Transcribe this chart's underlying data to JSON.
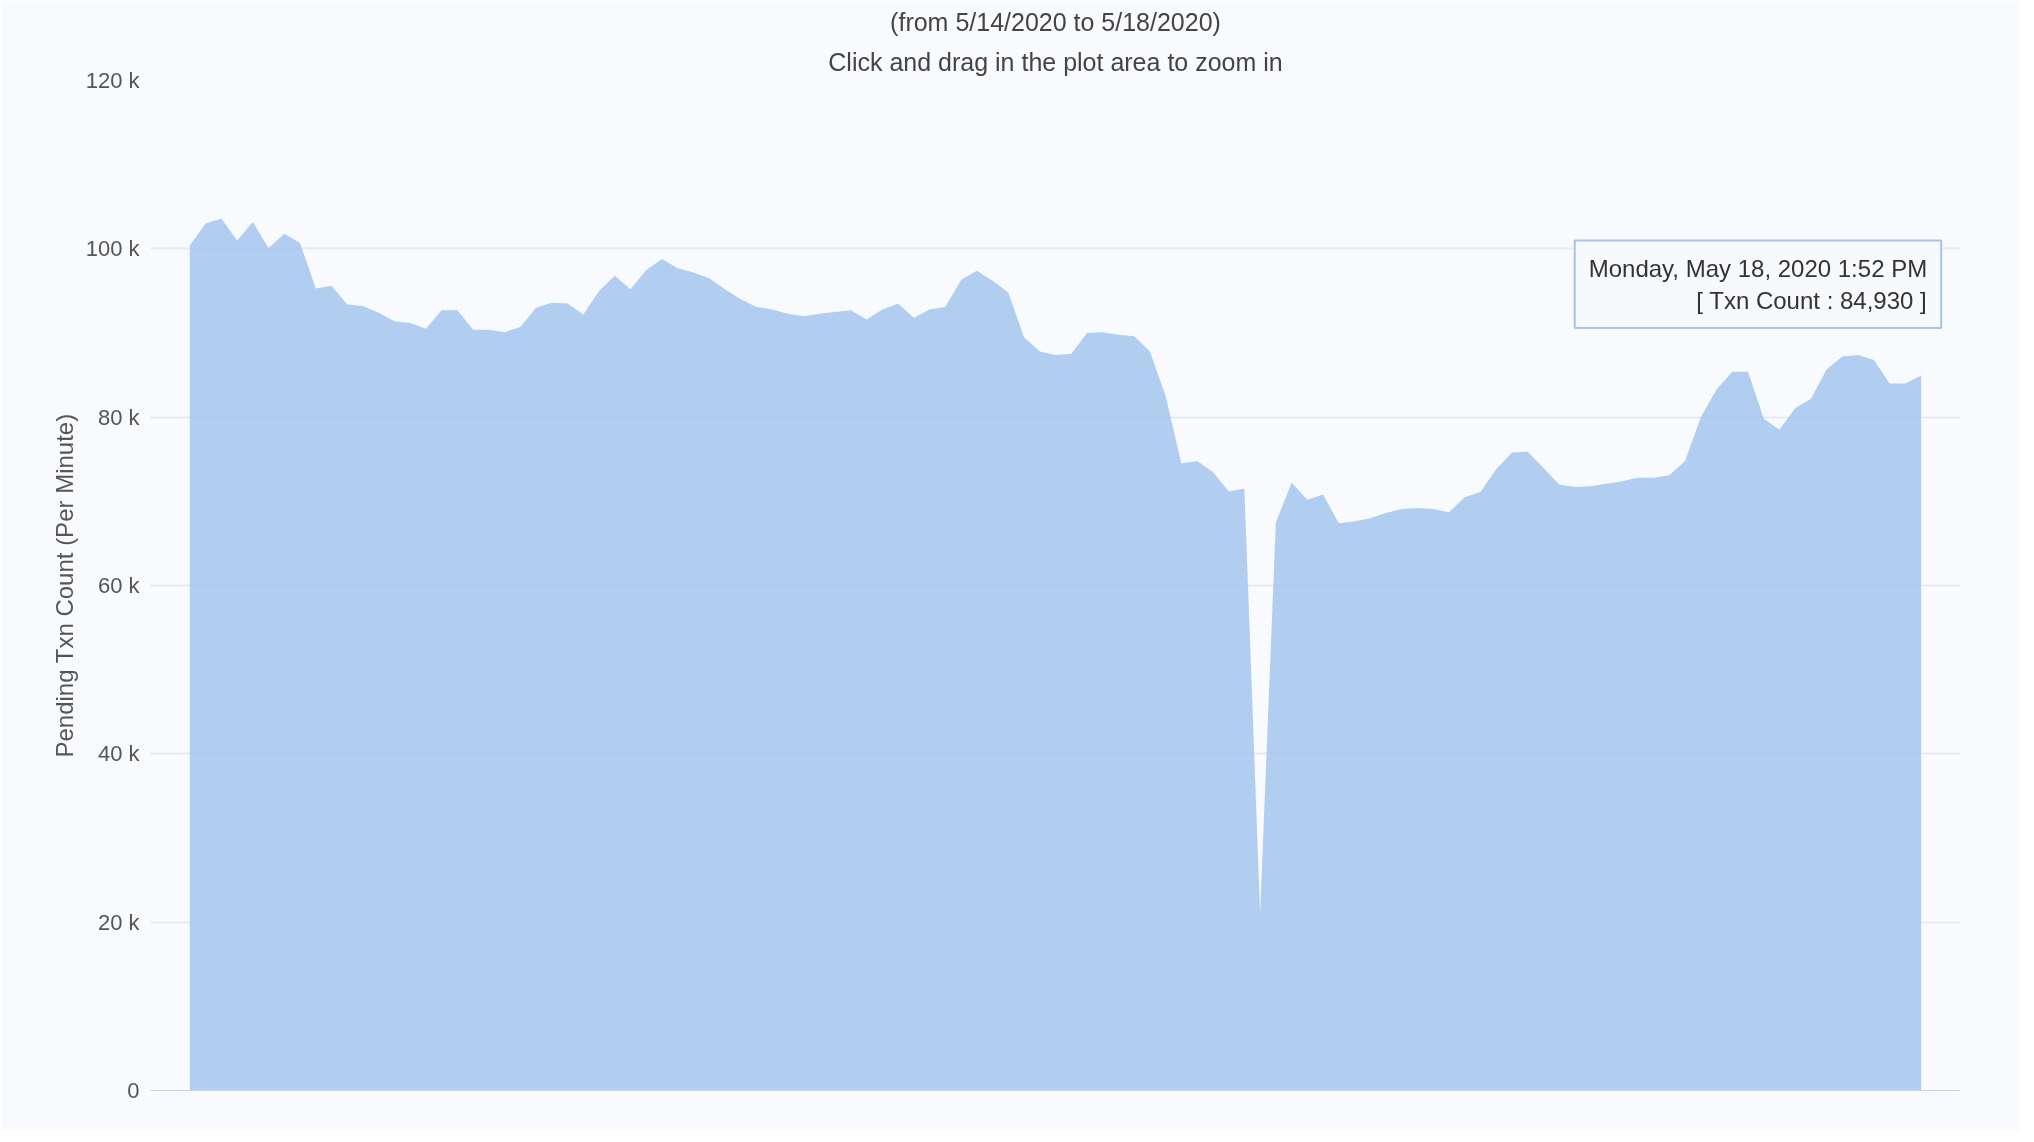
{
  "chart_data": {
    "type": "area",
    "title": "(from 5/14/2020 to 5/18/2020)",
    "subtitle": "Click and drag in the plot area to zoom in",
    "ylabel": "Pending Txn Count (Per Minute)",
    "categories": [
      null,
      null,
      null,
      null,
      null,
      null,
      null,
      null,
      null,
      null,
      null,
      null,
      null,
      null,
      null,
      null,
      null,
      null,
      null,
      null,
      null,
      null,
      null,
      null,
      null,
      null,
      null,
      null,
      null,
      null,
      null,
      null,
      null,
      null,
      null,
      null,
      null,
      null,
      null,
      null,
      null,
      null,
      null,
      null,
      null,
      null,
      null,
      null,
      null,
      null,
      null,
      null,
      null,
      null,
      null,
      null,
      null,
      null,
      null,
      null,
      null,
      null,
      null,
      null,
      null,
      null,
      null,
      null,
      null,
      null,
      null,
      null,
      null,
      null,
      null,
      null,
      null,
      null,
      null,
      null,
      null,
      null,
      null,
      null,
      null,
      null,
      null,
      null,
      null,
      null,
      null,
      null,
      null,
      null,
      null,
      null,
      null,
      null,
      null,
      null,
      null,
      null,
      null,
      null,
      null,
      null,
      null,
      null,
      null,
      null,
      null
    ],
    "series": [
      {
        "color": "#a5c4ec",
        "values": [
          100400,
          103000,
          103600,
          101000,
          103200,
          100100,
          101800,
          100700,
          95300,
          95600,
          93400,
          93200,
          92400,
          91400,
          91200,
          90500,
          92700,
          92700,
          90400,
          90400,
          90100,
          90700,
          93000,
          93600,
          93500,
          92200,
          95000,
          96800,
          95200,
          97500,
          98800,
          97700,
          97200,
          96500,
          95200,
          94000,
          93100,
          92800,
          92300,
          92000,
          92300,
          92500,
          92700,
          91600,
          92800,
          93500,
          91800,
          92800,
          93100,
          96300,
          97400,
          96200,
          94800,
          89500,
          87800,
          87400,
          87500,
          90000,
          90100,
          89800,
          89600,
          87800,
          82500,
          74500,
          74800,
          73500,
          71200,
          71500,
          21000,
          67500,
          72200,
          70200,
          70800,
          67400,
          67600,
          68000,
          68600,
          69100,
          69200,
          69100,
          68700,
          70500,
          71100,
          73800,
          75800,
          75900,
          74000,
          72000,
          71700,
          71800,
          72100,
          72400,
          72800,
          72800,
          73100,
          74800,
          80000,
          83300,
          85400,
          85400,
          79800,
          78500,
          81100,
          82200,
          85700,
          87200,
          87400,
          86800,
          84000,
          84000,
          84930
        ]
      }
    ],
    "ylim": [
      0,
      120000
    ],
    "yticks": [
      {
        "value": 0,
        "label": "0"
      },
      {
        "value": 20000,
        "label": "20 k"
      },
      {
        "value": 40000,
        "label": "40 k"
      },
      {
        "value": 60000,
        "label": "60 k"
      },
      {
        "value": 80000,
        "label": "80 k"
      },
      {
        "value": 100000,
        "label": "100 k"
      },
      {
        "value": 120000,
        "label": "120 k"
      }
    ],
    "grid": "y",
    "tick_labels": "y",
    "annotations": [
      "Monday, May 18, 2020 1:52 PM\n[ Txn Count : 84,930 ]"
    ]
  }
}
